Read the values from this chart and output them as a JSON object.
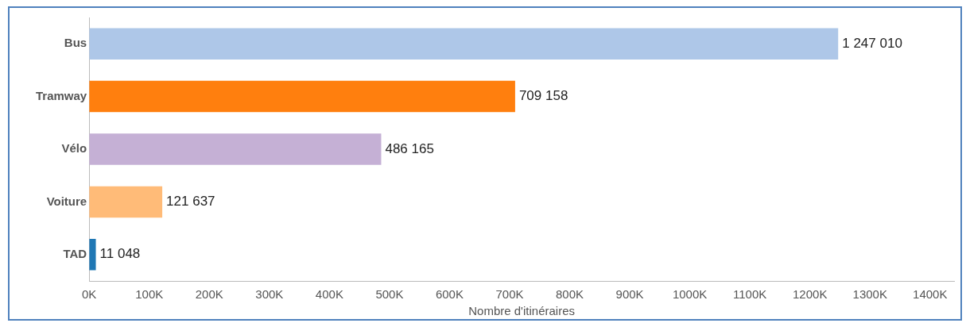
{
  "chart_data": {
    "type": "bar",
    "orientation": "horizontal",
    "categories": [
      "Bus",
      "Tramway",
      "Vélo",
      "Voiture",
      "TAD"
    ],
    "values": [
      1247010,
      709158,
      486165,
      121637,
      11048
    ],
    "colors": [
      "#aec7e8",
      "#ff7f0e",
      "#c5b0d5",
      "#ffbb78",
      "#1f77b4"
    ],
    "value_labels": [
      "1 247 010",
      "709 158",
      "486 165",
      "121 637",
      "11 048"
    ],
    "xlabel": "Nombre d'itinéraires",
    "xlim": [
      0,
      1440000
    ],
    "xticks": [
      {
        "value": 0,
        "label": "0K"
      },
      {
        "value": 100000,
        "label": "100K"
      },
      {
        "value": 200000,
        "label": "200K"
      },
      {
        "value": 300000,
        "label": "300K"
      },
      {
        "value": 400000,
        "label": "400K"
      },
      {
        "value": 500000,
        "label": "500K"
      },
      {
        "value": 600000,
        "label": "600K"
      },
      {
        "value": 700000,
        "label": "700K"
      },
      {
        "value": 800000,
        "label": "800K"
      },
      {
        "value": 900000,
        "label": "900K"
      },
      {
        "value": 1000000,
        "label": "1000K"
      },
      {
        "value": 1100000,
        "label": "1100K"
      },
      {
        "value": 1200000,
        "label": "1200K"
      },
      {
        "value": 1300000,
        "label": "1300K"
      },
      {
        "value": 1400000,
        "label": "1400K"
      }
    ],
    "grid": false,
    "legend": false
  }
}
